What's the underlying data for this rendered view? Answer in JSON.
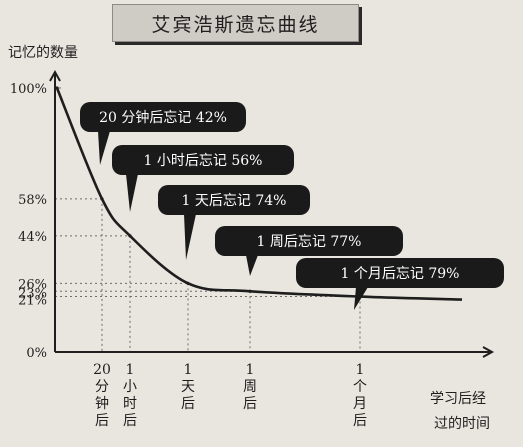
{
  "chart_data": {
    "type": "line",
    "title": "艾宾浩斯遗忘曲线",
    "ylabel": "记忆的数量",
    "xlabel": [
      "学习后经",
      "过的时间"
    ],
    "ylim": [
      0,
      100
    ],
    "y_ticks": [
      "0%",
      "21%",
      "23%",
      "26%",
      "44%",
      "58%",
      "100%"
    ],
    "x_ticks": [
      {
        "lines": [
          "20",
          "分",
          "钟",
          "后"
        ]
      },
      {
        "lines": [
          "1",
          "小",
          "时",
          "后"
        ]
      },
      {
        "lines": [
          "1",
          "天",
          "后"
        ]
      },
      {
        "lines": [
          "1",
          "周",
          "后"
        ]
      },
      {
        "lines": [
          "1",
          "个",
          "月",
          "后"
        ]
      }
    ],
    "series": [
      {
        "x": [
          "0",
          "20 分钟后",
          "1 小时后",
          "1 天后",
          "1 周后",
          "1 个月后"
        ],
        "values": [
          100,
          58,
          44,
          26,
          23,
          21
        ]
      }
    ],
    "annotations": [
      {
        "text": "20 分钟后忘记 42%",
        "x": "20 分钟后"
      },
      {
        "text": "1 小时后忘记 56%",
        "x": "1 小时后"
      },
      {
        "text": "1 天后忘记 74%",
        "x": "1 天后"
      },
      {
        "text": "1 周后忘记 77%",
        "x": "1 周后"
      },
      {
        "text": "1 个月后忘记 79%",
        "x": "1 个月后"
      }
    ],
    "grid": "dotted-guides",
    "colors": {
      "curve": "#1e1e1e",
      "callout_bg": "#1a1a1a",
      "callout_text": "#ffffff",
      "guide": "#6b6b6b"
    }
  }
}
